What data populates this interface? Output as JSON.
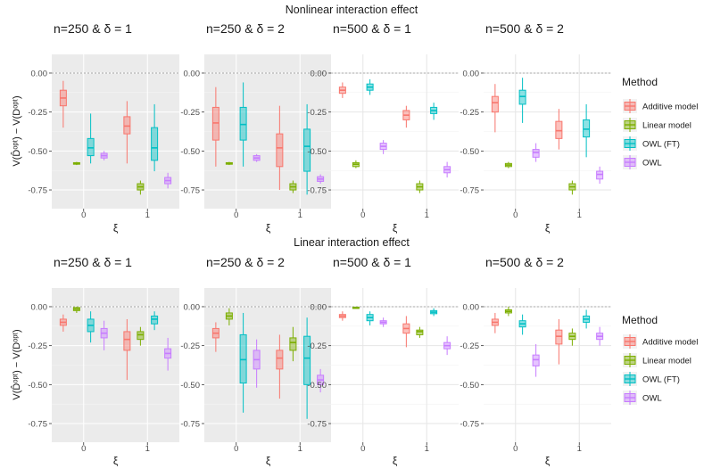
{
  "section_titles": [
    "Nonlinear interaction effect",
    "Linear interaction effect"
  ],
  "y_axis_label": "V(D̂ᵒᵖᵗ) − V(Dᵒᵖᵗ)",
  "x_axis_label": "ξ",
  "legend": {
    "title": "Method",
    "items": [
      {
        "name": "Additive model",
        "color": "#F8766D"
      },
      {
        "name": "Linear model",
        "color": "#7CAE00"
      },
      {
        "name": "OWL (FT)",
        "color": "#00BFC4"
      },
      {
        "name": "OWL",
        "color": "#C77CFF"
      }
    ]
  },
  "chart_data": [
    {
      "type": "boxplot",
      "section": "Nonlinear interaction effect",
      "title": "n=250 & δ = 1",
      "categories": [
        "0",
        "1"
      ],
      "ylim": [
        -0.87,
        0.12
      ],
      "yticks": [
        0,
        -0.25,
        -0.5,
        -0.75
      ],
      "grey_background": true,
      "series": [
        {
          "name": "Additive model",
          "boxes": [
            [
              -0.35,
              -0.21,
              -0.16,
              -0.11,
              -0.05
            ],
            [
              -0.58,
              -0.39,
              -0.34,
              -0.28,
              -0.18
            ]
          ]
        },
        {
          "name": "Linear model",
          "boxes": [
            [
              -0.59,
              -0.585,
              -0.58,
              -0.575,
              -0.57
            ],
            [
              -0.78,
              -0.75,
              -0.73,
              -0.71,
              -0.69
            ]
          ]
        },
        {
          "name": "OWL (FT)",
          "boxes": [
            [
              -0.58,
              -0.53,
              -0.48,
              -0.42,
              -0.26
            ],
            [
              -0.63,
              -0.56,
              -0.48,
              -0.35,
              -0.2
            ]
          ]
        },
        {
          "name": "OWL",
          "boxes": [
            [
              -0.56,
              -0.545,
              -0.53,
              -0.515,
              -0.5
            ],
            [
              -0.74,
              -0.71,
              -0.69,
              -0.67,
              -0.64
            ]
          ]
        }
      ]
    },
    {
      "type": "boxplot",
      "section": "Nonlinear interaction effect",
      "title": "n=250 & δ = 2",
      "categories": [
        "0",
        "1"
      ],
      "ylim": [
        -0.87,
        0.12
      ],
      "yticks": [
        0,
        -0.25,
        -0.5,
        -0.75
      ],
      "grey_background": true,
      "series": [
        {
          "name": "Additive model",
          "boxes": [
            [
              -0.6,
              -0.43,
              -0.32,
              -0.22,
              -0.09
            ],
            [
              -0.75,
              -0.6,
              -0.48,
              -0.39,
              -0.21
            ]
          ]
        },
        {
          "name": "Linear model",
          "boxes": [
            [
              -0.59,
              -0.585,
              -0.58,
              -0.575,
              -0.57
            ],
            [
              -0.77,
              -0.75,
              -0.73,
              -0.71,
              -0.69
            ]
          ]
        },
        {
          "name": "OWL (FT)",
          "boxes": [
            [
              -0.6,
              -0.43,
              -0.33,
              -0.22,
              -0.06
            ],
            [
              -0.78,
              -0.63,
              -0.47,
              -0.36,
              -0.2
            ]
          ]
        },
        {
          "name": "OWL",
          "boxes": [
            [
              -0.57,
              -0.56,
              -0.545,
              -0.53,
              -0.52
            ],
            [
              -0.71,
              -0.695,
              -0.68,
              -0.665,
              -0.65
            ]
          ]
        }
      ]
    },
    {
      "type": "boxplot",
      "section": "Nonlinear interaction effect",
      "title": "n=500 & δ = 1",
      "categories": [
        "0",
        "1"
      ],
      "ylim": [
        -0.87,
        0.12
      ],
      "yticks": [
        0,
        -0.25,
        -0.5,
        -0.75
      ],
      "grey_background": false,
      "series": [
        {
          "name": "Additive model",
          "boxes": [
            [
              -0.16,
              -0.13,
              -0.11,
              -0.09,
              -0.06
            ],
            [
              -0.35,
              -0.3,
              -0.27,
              -0.24,
              -0.21
            ]
          ]
        },
        {
          "name": "Linear model",
          "boxes": [
            [
              -0.61,
              -0.6,
              -0.585,
              -0.575,
              -0.56
            ],
            [
              -0.77,
              -0.75,
              -0.73,
              -0.71,
              -0.69
            ]
          ]
        },
        {
          "name": "OWL (FT)",
          "boxes": [
            [
              -0.14,
              -0.11,
              -0.09,
              -0.07,
              -0.04
            ],
            [
              -0.3,
              -0.26,
              -0.24,
              -0.22,
              -0.19
            ]
          ]
        },
        {
          "name": "OWL",
          "boxes": [
            [
              -0.52,
              -0.49,
              -0.47,
              -0.45,
              -0.43
            ],
            [
              -0.67,
              -0.64,
              -0.62,
              -0.6,
              -0.57
            ]
          ]
        }
      ]
    },
    {
      "type": "boxplot",
      "section": "Nonlinear interaction effect",
      "title": "n=500 & δ = 2",
      "categories": [
        "0",
        "1"
      ],
      "ylim": [
        -0.87,
        0.12
      ],
      "yticks": [
        0,
        -0.25,
        -0.5,
        -0.75
      ],
      "grey_background": false,
      "series": [
        {
          "name": "Additive model",
          "boxes": [
            [
              -0.38,
              -0.25,
              -0.19,
              -0.15,
              -0.07
            ],
            [
              -0.49,
              -0.42,
              -0.37,
              -0.31,
              -0.23
            ]
          ]
        },
        {
          "name": "Linear model",
          "boxes": [
            [
              -0.61,
              -0.6,
              -0.59,
              -0.58,
              -0.57
            ],
            [
              -0.78,
              -0.75,
              -0.73,
              -0.71,
              -0.69
            ]
          ]
        },
        {
          "name": "OWL (FT)",
          "boxes": [
            [
              -0.32,
              -0.2,
              -0.15,
              -0.11,
              -0.03
            ],
            [
              -0.54,
              -0.41,
              -0.36,
              -0.3,
              -0.2
            ]
          ]
        },
        {
          "name": "OWL",
          "boxes": [
            [
              -0.57,
              -0.54,
              -0.51,
              -0.49,
              -0.45
            ],
            [
              -0.71,
              -0.68,
              -0.65,
              -0.63,
              -0.6
            ]
          ]
        }
      ]
    },
    {
      "type": "boxplot",
      "section": "Linear interaction effect",
      "title": "n=250 & δ = 1",
      "categories": [
        "0",
        "1"
      ],
      "ylim": [
        -0.87,
        0.12
      ],
      "yticks": [
        0,
        -0.25,
        -0.5,
        -0.75
      ],
      "grey_background": true,
      "series": [
        {
          "name": "Additive model",
          "boxes": [
            [
              -0.16,
              -0.12,
              -0.1,
              -0.08,
              -0.05
            ],
            [
              -0.47,
              -0.28,
              -0.21,
              -0.16,
              -0.08
            ]
          ]
        },
        {
          "name": "Linear model",
          "boxes": [
            [
              -0.04,
              -0.025,
              -0.015,
              -0.005,
              0.0
            ],
            [
              -0.25,
              -0.21,
              -0.18,
              -0.16,
              -0.13
            ]
          ]
        },
        {
          "name": "OWL (FT)",
          "boxes": [
            [
              -0.23,
              -0.16,
              -0.12,
              -0.08,
              -0.03
            ],
            [
              -0.15,
              -0.11,
              -0.08,
              -0.06,
              -0.03
            ]
          ]
        },
        {
          "name": "OWL",
          "boxes": [
            [
              -0.28,
              -0.2,
              -0.17,
              -0.14,
              -0.09
            ],
            [
              -0.41,
              -0.33,
              -0.3,
              -0.27,
              -0.2
            ]
          ]
        }
      ]
    },
    {
      "type": "boxplot",
      "section": "Linear interaction effect",
      "title": "n=250 & δ = 2",
      "categories": [
        "0",
        "1"
      ],
      "ylim": [
        -0.87,
        0.12
      ],
      "yticks": [
        0,
        -0.25,
        -0.5,
        -0.75
      ],
      "grey_background": true,
      "series": [
        {
          "name": "Additive model",
          "boxes": [
            [
              -0.29,
              -0.2,
              -0.17,
              -0.14,
              -0.1
            ],
            [
              -0.59,
              -0.4,
              -0.33,
              -0.28,
              -0.18
            ]
          ]
        },
        {
          "name": "Linear model",
          "boxes": [
            [
              -0.12,
              -0.08,
              -0.06,
              -0.04,
              -0.01
            ],
            [
              -0.35,
              -0.28,
              -0.23,
              -0.2,
              -0.13
            ]
          ]
        },
        {
          "name": "OWL (FT)",
          "boxes": [
            [
              -0.68,
              -0.49,
              -0.34,
              -0.18,
              -0.04
            ],
            [
              -0.72,
              -0.5,
              -0.33,
              -0.19,
              -0.07
            ]
          ]
        },
        {
          "name": "OWL",
          "boxes": [
            [
              -0.52,
              -0.4,
              -0.34,
              -0.28,
              -0.21
            ],
            [
              -0.55,
              -0.5,
              -0.47,
              -0.44,
              -0.4
            ]
          ]
        }
      ]
    },
    {
      "type": "boxplot",
      "section": "Linear interaction effect",
      "title": "n=500 & δ = 1",
      "categories": [
        "0",
        "1"
      ],
      "ylim": [
        -0.87,
        0.12
      ],
      "yticks": [
        0,
        -0.25,
        -0.5,
        -0.75
      ],
      "grey_background": false,
      "series": [
        {
          "name": "Additive model",
          "boxes": [
            [
              -0.09,
              -0.07,
              -0.06,
              -0.05,
              -0.03
            ],
            [
              -0.26,
              -0.17,
              -0.14,
              -0.11,
              -0.06
            ]
          ]
        },
        {
          "name": "Linear model",
          "boxes": [
            [
              -0.01,
              -0.008,
              -0.005,
              -0.003,
              0.0
            ],
            [
              -0.2,
              -0.18,
              -0.16,
              -0.15,
              -0.13
            ]
          ]
        },
        {
          "name": "OWL (FT)",
          "boxes": [
            [
              -0.12,
              -0.09,
              -0.07,
              -0.05,
              -0.03
            ],
            [
              -0.06,
              -0.045,
              -0.035,
              -0.025,
              -0.01
            ]
          ]
        },
        {
          "name": "OWL",
          "boxes": [
            [
              -0.13,
              -0.11,
              -0.1,
              -0.09,
              -0.07
            ],
            [
              -0.31,
              -0.27,
              -0.25,
              -0.23,
              -0.19
            ]
          ]
        }
      ]
    },
    {
      "type": "boxplot",
      "section": "Linear interaction effect",
      "title": "n=500 & δ = 2",
      "categories": [
        "0",
        "1"
      ],
      "ylim": [
        -0.87,
        0.12
      ],
      "yticks": [
        0,
        -0.25,
        -0.5,
        -0.75
      ],
      "grey_background": false,
      "series": [
        {
          "name": "Additive model",
          "boxes": [
            [
              -0.17,
              -0.12,
              -0.1,
              -0.08,
              -0.04
            ],
            [
              -0.37,
              -0.24,
              -0.19,
              -0.15,
              -0.08
            ]
          ]
        },
        {
          "name": "Linear model",
          "boxes": [
            [
              -0.06,
              -0.04,
              -0.03,
              -0.02,
              0.0
            ],
            [
              -0.25,
              -0.21,
              -0.19,
              -0.17,
              -0.14
            ]
          ]
        },
        {
          "name": "OWL (FT)",
          "boxes": [
            [
              -0.18,
              -0.13,
              -0.11,
              -0.09,
              -0.05
            ],
            [
              -0.14,
              -0.1,
              -0.08,
              -0.06,
              -0.02
            ]
          ]
        },
        {
          "name": "OWL",
          "boxes": [
            [
              -0.45,
              -0.38,
              -0.34,
              -0.31,
              -0.24
            ],
            [
              -0.25,
              -0.21,
              -0.19,
              -0.17,
              -0.13
            ]
          ]
        }
      ]
    }
  ]
}
